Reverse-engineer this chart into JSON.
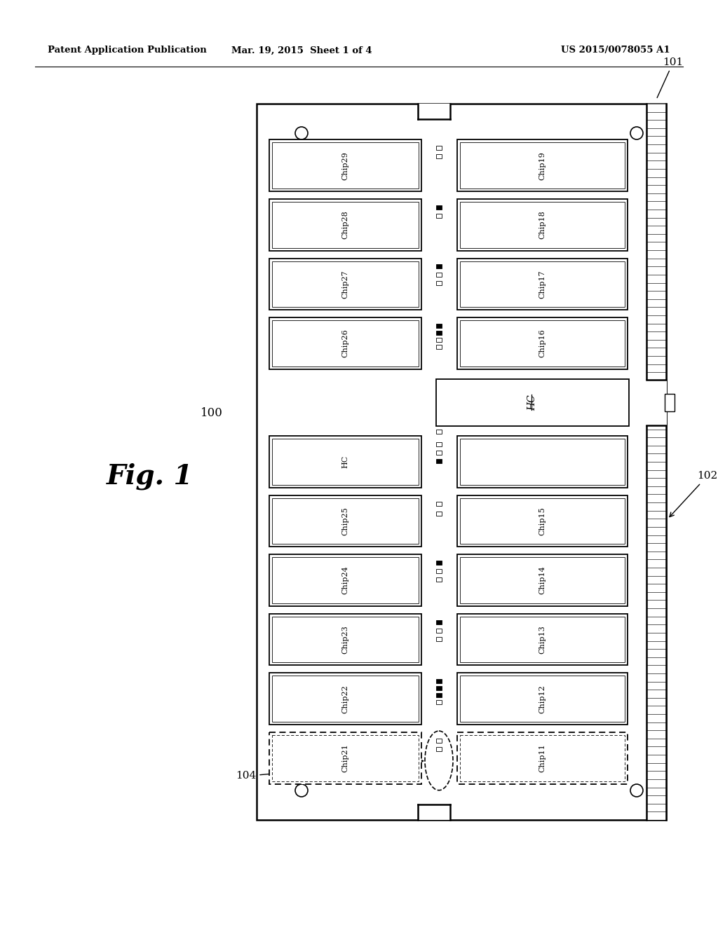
{
  "bg_color": "#ffffff",
  "header_left": "Patent Application Publication",
  "header_mid": "Mar. 19, 2015  Sheet 1 of 4",
  "header_right": "US 2015/0078055 A1",
  "fig_label": "Fig. 1",
  "label_100": "100",
  "label_101": "101",
  "label_102": "102",
  "label_104": "104",
  "chips_left": [
    "Chip29",
    "Chip28",
    "Chip27",
    "Chip26",
    "HC",
    "Chip25",
    "Chip24",
    "Chip23",
    "Chip22",
    "Chip21"
  ],
  "chips_right": [
    "Chip19",
    "Chip18",
    "Chip17",
    "Chip16",
    "",
    "Chip15",
    "Chip14",
    "Chip13",
    "Chip12",
    "Chip11"
  ]
}
